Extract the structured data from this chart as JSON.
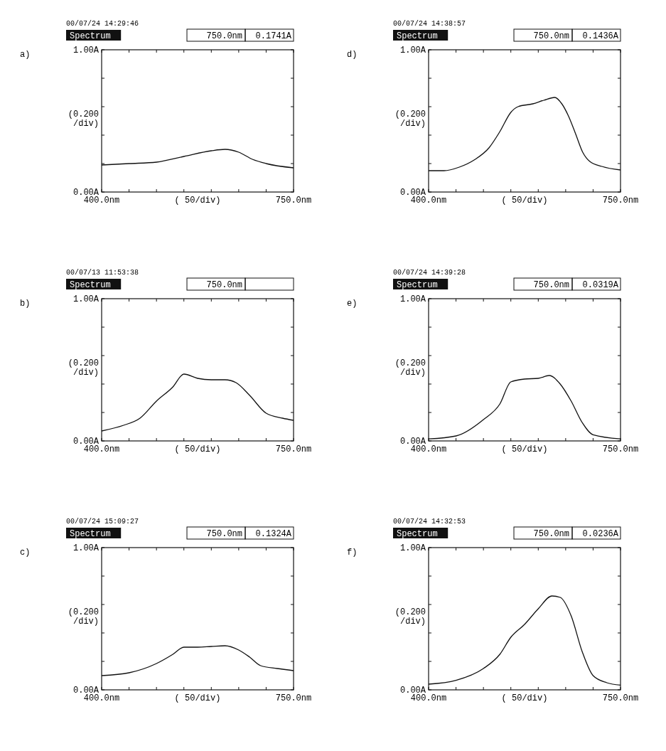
{
  "chart_data": [
    {
      "type": "line",
      "title": "Spectrum",
      "subtitle": "00/07/24 14:29:46",
      "annotations": [
        "a)",
        "750.0nm",
        "0.1741A"
      ],
      "xlabel": "( 50/div)",
      "ylabel": "(0.200 /div)",
      "color": "#111111",
      "grid": false,
      "xlim": [
        400,
        750
      ],
      "ylim": [
        0,
        1
      ],
      "xticks": [
        {
          "value": 400,
          "label": "400.0nm"
        },
        {
          "value": 450,
          "label": null
        },
        {
          "value": 500,
          "label": null
        },
        {
          "value": 550,
          "label": null
        },
        {
          "value": 600,
          "label": null
        },
        {
          "value": 650,
          "label": null
        },
        {
          "value": 700,
          "label": null
        },
        {
          "value": 750,
          "label": "750.0nm"
        }
      ],
      "yticks": [
        {
          "value": 0,
          "label": "0.00A"
        },
        {
          "value": 0.2,
          "label": null
        },
        {
          "value": 0.4,
          "label": null
        },
        {
          "value": 0.6,
          "label": null
        },
        {
          "value": 0.8,
          "label": null
        },
        {
          "value": 1,
          "label": "1.00A"
        }
      ],
      "x": [
        400,
        450,
        500,
        550,
        600,
        625,
        650,
        675,
        700,
        750
      ],
      "values": [
        0.19,
        0.2,
        0.21,
        0.25,
        0.29,
        0.3,
        0.28,
        0.23,
        0.2,
        0.17
      ]
    },
    {
      "type": "line",
      "title": "Spectrum",
      "subtitle": "00/07/24 14:38:57",
      "annotations": [
        "d)",
        "750.0nm",
        "0.1436A"
      ],
      "xlabel": "( 50/div)",
      "ylabel": "(0.200 /div)",
      "color": "#111111",
      "grid": false,
      "xlim": [
        400,
        750
      ],
      "ylim": [
        0,
        1
      ],
      "xticks": [
        {
          "value": 400,
          "label": "400.0nm"
        },
        {
          "value": 450,
          "label": null
        },
        {
          "value": 500,
          "label": null
        },
        {
          "value": 550,
          "label": null
        },
        {
          "value": 600,
          "label": null
        },
        {
          "value": 650,
          "label": null
        },
        {
          "value": 700,
          "label": null
        },
        {
          "value": 750,
          "label": "750.0nm"
        }
      ],
      "yticks": [
        {
          "value": 0,
          "label": "0.00A"
        },
        {
          "value": 0.2,
          "label": null
        },
        {
          "value": 0.4,
          "label": null
        },
        {
          "value": 0.6,
          "label": null
        },
        {
          "value": 0.8,
          "label": null
        },
        {
          "value": 1,
          "label": "1.00A"
        }
      ],
      "x": [
        400,
        428,
        456,
        483,
        510,
        530,
        550,
        563,
        590,
        610,
        630,
        643,
        655,
        668,
        681,
        694,
        716,
        750
      ],
      "values": [
        0.15,
        0.15,
        0.175,
        0.225,
        0.31,
        0.425,
        0.56,
        0.6,
        0.62,
        0.645,
        0.665,
        0.62,
        0.535,
        0.41,
        0.28,
        0.215,
        0.18,
        0.155
      ]
    },
    {
      "type": "line",
      "title": "Spectrum",
      "subtitle": "00/07/13 11:53:38",
      "annotations": [
        "b)",
        "750.0nm"
      ],
      "xlabel": "( 50/div)",
      "ylabel": "(0.200 /div)",
      "color": "#111111",
      "grid": false,
      "xlim": [
        400,
        750
      ],
      "ylim": [
        0,
        1
      ],
      "xticks": [
        {
          "value": 400,
          "label": "400.0nm"
        },
        {
          "value": 450,
          "label": null
        },
        {
          "value": 500,
          "label": null
        },
        {
          "value": 550,
          "label": null
        },
        {
          "value": 600,
          "label": null
        },
        {
          "value": 650,
          "label": null
        },
        {
          "value": 700,
          "label": null
        },
        {
          "value": 750,
          "label": "750.0nm"
        }
      ],
      "yticks": [
        {
          "value": 0,
          "label": "0.00A"
        },
        {
          "value": 0.2,
          "label": null
        },
        {
          "value": 0.4,
          "label": null
        },
        {
          "value": 0.6,
          "label": null
        },
        {
          "value": 0.8,
          "label": null
        },
        {
          "value": 1,
          "label": "1.00A"
        }
      ],
      "x": [
        400,
        440,
        470,
        500,
        530,
        550,
        575,
        600,
        625,
        645,
        670,
        700,
        730,
        750
      ],
      "values": [
        0.07,
        0.11,
        0.16,
        0.28,
        0.38,
        0.47,
        0.44,
        0.43,
        0.43,
        0.41,
        0.32,
        0.195,
        0.16,
        0.145
      ]
    },
    {
      "type": "line",
      "title": "Spectrum",
      "subtitle": "00/07/24 14:39:28",
      "annotations": [
        "e)",
        "750.0nm",
        "0.0319A"
      ],
      "xlabel": "( 50/div)",
      "ylabel": "(0.200 /div)",
      "color": "#111111",
      "grid": false,
      "xlim": [
        400,
        750
      ],
      "ylim": [
        0,
        1
      ],
      "xticks": [
        {
          "value": 400,
          "label": "400.0nm"
        },
        {
          "value": 450,
          "label": null
        },
        {
          "value": 500,
          "label": null
        },
        {
          "value": 550,
          "label": null
        },
        {
          "value": 600,
          "label": null
        },
        {
          "value": 650,
          "label": null
        },
        {
          "value": 700,
          "label": null
        },
        {
          "value": 750,
          "label": "750.0nm"
        }
      ],
      "yticks": [
        {
          "value": 0,
          "label": "0.00A"
        },
        {
          "value": 0.2,
          "label": null
        },
        {
          "value": 0.4,
          "label": null
        },
        {
          "value": 0.6,
          "label": null
        },
        {
          "value": 0.8,
          "label": null
        },
        {
          "value": 1,
          "label": "1.00A"
        }
      ],
      "x": [
        400,
        450,
        500,
        530,
        550,
        575,
        600,
        620,
        640,
        660,
        680,
        700,
        750
      ],
      "values": [
        0.014,
        0.035,
        0.15,
        0.26,
        0.415,
        0.435,
        0.44,
        0.46,
        0.4,
        0.28,
        0.13,
        0.043,
        0.014
      ]
    },
    {
      "type": "line",
      "title": "Spectrum",
      "subtitle": "00/07/24 15:09:27",
      "annotations": [
        "c)",
        "750.0nm",
        "0.1324A"
      ],
      "xlabel": "( 50/div)",
      "ylabel": "(0.200 /div)",
      "color": "#111111",
      "grid": false,
      "xlim": [
        400,
        750
      ],
      "ylim": [
        0,
        1
      ],
      "xticks": [
        {
          "value": 400,
          "label": "400.0nm"
        },
        {
          "value": 450,
          "label": null
        },
        {
          "value": 500,
          "label": null
        },
        {
          "value": 550,
          "label": null
        },
        {
          "value": 600,
          "label": null
        },
        {
          "value": 650,
          "label": null
        },
        {
          "value": 700,
          "label": null
        },
        {
          "value": 750,
          "label": "750.0nm"
        }
      ],
      "yticks": [
        {
          "value": 0,
          "label": "0.00A"
        },
        {
          "value": 0.2,
          "label": null
        },
        {
          "value": 0.4,
          "label": null
        },
        {
          "value": 0.6,
          "label": null
        },
        {
          "value": 0.8,
          "label": null
        },
        {
          "value": 1,
          "label": "1.00A"
        }
      ],
      "x": [
        400,
        450,
        500,
        530,
        550,
        575,
        600,
        625,
        650,
        670,
        690,
        720,
        750
      ],
      "values": [
        0.1,
        0.12,
        0.185,
        0.25,
        0.3,
        0.3,
        0.305,
        0.31,
        0.28,
        0.23,
        0.17,
        0.15,
        0.135
      ]
    },
    {
      "type": "line",
      "title": "Spectrum",
      "subtitle": "00/07/24 14:32:53",
      "annotations": [
        "f)",
        "750.0nm",
        "0.0236A"
      ],
      "xlabel": "( 50/div)",
      "ylabel": "(0.200 /div)",
      "color": "#111111",
      "grid": false,
      "xlim": [
        400,
        750
      ],
      "ylim": [
        0,
        1
      ],
      "xticks": [
        {
          "value": 400,
          "label": "400.0nm"
        },
        {
          "value": 450,
          "label": null
        },
        {
          "value": 500,
          "label": null
        },
        {
          "value": 550,
          "label": null
        },
        {
          "value": 600,
          "label": null
        },
        {
          "value": 650,
          "label": null
        },
        {
          "value": 700,
          "label": null
        },
        {
          "value": 750,
          "label": "750.0nm"
        }
      ],
      "yticks": [
        {
          "value": 0,
          "label": "0.00A"
        },
        {
          "value": 0.2,
          "label": null
        },
        {
          "value": 0.4,
          "label": null
        },
        {
          "value": 0.6,
          "label": null
        },
        {
          "value": 0.8,
          "label": null
        },
        {
          "value": 1,
          "label": "1.00A"
        }
      ],
      "x": [
        400,
        450,
        500,
        530,
        550,
        575,
        600,
        625,
        640,
        660,
        680,
        700,
        725,
        750
      ],
      "values": [
        0.04,
        0.067,
        0.15,
        0.25,
        0.37,
        0.46,
        0.57,
        0.66,
        0.65,
        0.52,
        0.27,
        0.1,
        0.05,
        0.033
      ]
    }
  ]
}
